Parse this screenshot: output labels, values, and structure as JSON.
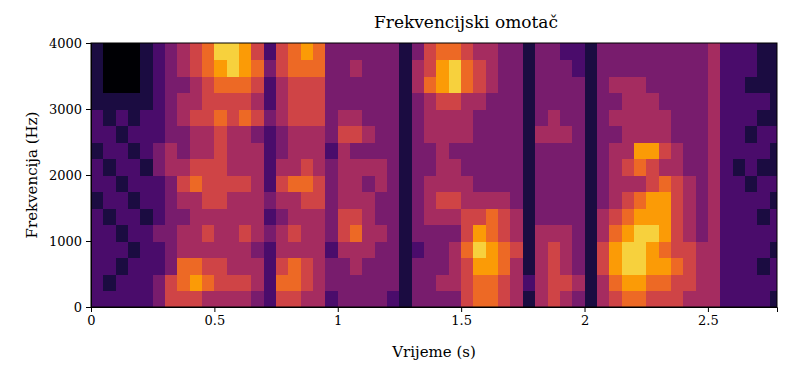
{
  "chart_data": {
    "type": "heatmap",
    "title": "Frekvencijski omotač",
    "x_label": "Vrijeme (s)",
    "y_label": "Frekvencija (Hz)",
    "color": "inferno",
    "xlim": [
      0,
      2.78
    ],
    "ylim": [
      0,
      4000
    ],
    "xticks": [
      0,
      0.5,
      1,
      1.5,
      2,
      2.5
    ],
    "yticks": [
      0,
      1000,
      2000,
      3000,
      4000
    ],
    "zlim": [
      0,
      9
    ],
    "x": [
      0,
      0.05,
      0.1,
      0.15,
      0.2,
      0.25,
      0.3,
      0.35,
      0.4,
      0.45,
      0.5,
      0.55,
      0.6,
      0.65,
      0.7,
      0.75,
      0.8,
      0.85,
      0.9,
      0.95,
      1,
      1.05,
      1.1,
      1.15,
      1.2,
      1.25,
      1.3,
      1.35,
      1.4,
      1.45,
      1.5,
      1.55,
      1.6,
      1.65,
      1.7,
      1.75,
      1.8,
      1.85,
      1.9,
      1.95,
      2,
      2.05,
      2.1,
      2.15,
      2.2,
      2.25,
      2.3,
      2.35,
      2.4,
      2.45,
      2.5,
      2.55,
      2.6,
      2.65,
      2.7,
      2.75
    ],
    "y": [
      0,
      250,
      500,
      750,
      1000,
      1250,
      1500,
      1750,
      2000,
      2250,
      2500,
      2750,
      3000,
      3250,
      3500,
      3750
    ],
    "z": [
      [
        2,
        2,
        2,
        2,
        2,
        2,
        1,
        2,
        2,
        1,
        2,
        2,
        1,
        1,
        1,
        1
      ],
      [
        2,
        1,
        2,
        2,
        2,
        1,
        2,
        2,
        1,
        2,
        2,
        1,
        1,
        0,
        0,
        0
      ],
      [
        2,
        2,
        1,
        2,
        1,
        2,
        2,
        1,
        2,
        2,
        1,
        2,
        1,
        0,
        0,
        0
      ],
      [
        2,
        2,
        2,
        1,
        2,
        2,
        1,
        2,
        2,
        1,
        2,
        1,
        1,
        0,
        0,
        0
      ],
      [
        2,
        2,
        2,
        2,
        2,
        1,
        2,
        2,
        1,
        2,
        2,
        2,
        1,
        1,
        1,
        1
      ],
      [
        3,
        3,
        2,
        2,
        3,
        2,
        2,
        2,
        3,
        3,
        2,
        2,
        2,
        2,
        2,
        2
      ],
      [
        5,
        5,
        3,
        3,
        3,
        3,
        3,
        3,
        4,
        4,
        3,
        3,
        3,
        3,
        3,
        3
      ],
      [
        5,
        6,
        6,
        4,
        4,
        3,
        4,
        5,
        4,
        3,
        3,
        4,
        4,
        3,
        4,
        4
      ],
      [
        5,
        7,
        6,
        4,
        4,
        4,
        4,
        6,
        5,
        4,
        4,
        5,
        4,
        4,
        5,
        5
      ],
      [
        4,
        6,
        5,
        4,
        5,
        4,
        5,
        5,
        5,
        4,
        4,
        5,
        5,
        5,
        6,
        6
      ],
      [
        4,
        5,
        5,
        4,
        4,
        4,
        5,
        5,
        5,
        5,
        5,
        6,
        5,
        6,
        7,
        8
      ],
      [
        4,
        5,
        4,
        4,
        4,
        4,
        4,
        5,
        4,
        4,
        4,
        5,
        5,
        6,
        8,
        8
      ],
      [
        4,
        5,
        4,
        4,
        5,
        4,
        4,
        5,
        4,
        4,
        4,
        6,
        5,
        6,
        7,
        7
      ],
      [
        3,
        4,
        4,
        3,
        4,
        4,
        4,
        4,
        4,
        4,
        3,
        5,
        4,
        5,
        6,
        5
      ],
      [
        2,
        2,
        2,
        2,
        3,
        2,
        3,
        2,
        2,
        2,
        2,
        3,
        2,
        2,
        3,
        2
      ],
      [
        5,
        6,
        5,
        4,
        4,
        3,
        4,
        5,
        4,
        3,
        3,
        4,
        4,
        4,
        5,
        5
      ],
      [
        5,
        6,
        6,
        4,
        5,
        4,
        4,
        6,
        4,
        4,
        4,
        5,
        5,
        5,
        6,
        6
      ],
      [
        4,
        5,
        5,
        4,
        4,
        4,
        5,
        6,
        5,
        4,
        4,
        5,
        5,
        5,
        6,
        7
      ],
      [
        4,
        4,
        4,
        4,
        4,
        4,
        5,
        5,
        4,
        4,
        4,
        5,
        5,
        5,
        6,
        6
      ],
      [
        2,
        3,
        3,
        2,
        3,
        3,
        3,
        3,
        3,
        2,
        3,
        3,
        3,
        3,
        3,
        3
      ],
      [
        3,
        3,
        3,
        4,
        5,
        5,
        4,
        4,
        4,
        4,
        5,
        4,
        3,
        3,
        3,
        3
      ],
      [
        3,
        3,
        4,
        4,
        6,
        5,
        4,
        4,
        4,
        3,
        5,
        4,
        3,
        3,
        4,
        3
      ],
      [
        3,
        3,
        3,
        4,
        4,
        4,
        4,
        3,
        4,
        3,
        4,
        3,
        3,
        3,
        3,
        3
      ],
      [
        3,
        3,
        3,
        3,
        4,
        3,
        3,
        4,
        4,
        3,
        3,
        3,
        3,
        3,
        3,
        3
      ],
      [
        2,
        3,
        3,
        3,
        3,
        3,
        3,
        3,
        3,
        3,
        3,
        3,
        3,
        3,
        3,
        3
      ],
      [
        1,
        1,
        1,
        1,
        1,
        1,
        1,
        1,
        1,
        1,
        1,
        1,
        1,
        1,
        1,
        1
      ],
      [
        3,
        3,
        3,
        2,
        3,
        3,
        3,
        3,
        3,
        3,
        3,
        3,
        3,
        4,
        4,
        3
      ],
      [
        3,
        3,
        3,
        3,
        3,
        4,
        4,
        4,
        3,
        3,
        4,
        4,
        4,
        6,
        5,
        5
      ],
      [
        3,
        4,
        3,
        3,
        3,
        4,
        5,
        4,
        4,
        4,
        4,
        4,
        5,
        7,
        7,
        6
      ],
      [
        3,
        4,
        4,
        4,
        3,
        4,
        5,
        4,
        4,
        3,
        4,
        4,
        5,
        8,
        8,
        6
      ],
      [
        5,
        5,
        5,
        6,
        5,
        5,
        4,
        4,
        3,
        3,
        4,
        4,
        4,
        6,
        6,
        5
      ],
      [
        6,
        6,
        7,
        8,
        7,
        5,
        4,
        3,
        3,
        3,
        3,
        3,
        4,
        5,
        5,
        4
      ],
      [
        6,
        6,
        7,
        7,
        6,
        6,
        4,
        3,
        3,
        3,
        3,
        3,
        3,
        4,
        4,
        4
      ],
      [
        5,
        5,
        6,
        6,
        5,
        5,
        4,
        3,
        3,
        3,
        3,
        3,
        3,
        3,
        3,
        3
      ],
      [
        4,
        4,
        4,
        5,
        4,
        4,
        3,
        3,
        3,
        3,
        3,
        3,
        3,
        3,
        3,
        3
      ],
      [
        1,
        2,
        1,
        1,
        1,
        1,
        1,
        1,
        1,
        1,
        1,
        1,
        1,
        1,
        1,
        1
      ],
      [
        4,
        4,
        4,
        4,
        4,
        3,
        3,
        3,
        3,
        3,
        4,
        3,
        3,
        3,
        3,
        3
      ],
      [
        5,
        5,
        5,
        5,
        4,
        3,
        3,
        3,
        3,
        3,
        4,
        4,
        3,
        3,
        3,
        3
      ],
      [
        4,
        5,
        4,
        4,
        4,
        3,
        3,
        3,
        3,
        3,
        4,
        3,
        3,
        3,
        3,
        2
      ],
      [
        3,
        4,
        3,
        3,
        3,
        3,
        3,
        3,
        3,
        3,
        3,
        3,
        3,
        3,
        2,
        2
      ],
      [
        1,
        1,
        1,
        1,
        1,
        1,
        1,
        1,
        1,
        1,
        1,
        1,
        1,
        1,
        1,
        1
      ],
      [
        4,
        4,
        5,
        5,
        4,
        4,
        3,
        3,
        3,
        3,
        3,
        3,
        3,
        3,
        3,
        3
      ],
      [
        5,
        6,
        7,
        7,
        6,
        5,
        4,
        4,
        4,
        4,
        3,
        4,
        3,
        4,
        3,
        3
      ],
      [
        6,
        7,
        8,
        8,
        7,
        6,
        5,
        4,
        5,
        4,
        4,
        4,
        4,
        4,
        3,
        3
      ],
      [
        6,
        7,
        8,
        8,
        8,
        7,
        6,
        4,
        6,
        7,
        4,
        4,
        4,
        4,
        3,
        3
      ],
      [
        5,
        6,
        7,
        7,
        8,
        7,
        7,
        5,
        5,
        7,
        4,
        4,
        4,
        3,
        3,
        3
      ],
      [
        5,
        6,
        7,
        6,
        7,
        7,
        7,
        6,
        4,
        5,
        4,
        4,
        3,
        3,
        3,
        3
      ],
      [
        5,
        5,
        6,
        5,
        5,
        5,
        5,
        5,
        4,
        4,
        3,
        3,
        3,
        3,
        3,
        3
      ],
      [
        4,
        5,
        5,
        5,
        4,
        4,
        4,
        4,
        3,
        3,
        3,
        3,
        3,
        3,
        3,
        3
      ],
      [
        4,
        4,
        4,
        4,
        3,
        3,
        3,
        3,
        3,
        3,
        3,
        3,
        3,
        3,
        3,
        3
      ],
      [
        4,
        4,
        4,
        4,
        4,
        4,
        4,
        4,
        4,
        4,
        4,
        4,
        4,
        4,
        4,
        4
      ],
      [
        2,
        2,
        2,
        2,
        2,
        2,
        2,
        2,
        2,
        2,
        2,
        2,
        2,
        2,
        2,
        2
      ],
      [
        2,
        2,
        2,
        2,
        2,
        2,
        2,
        2,
        1,
        2,
        2,
        2,
        2,
        2,
        2,
        2
      ],
      [
        2,
        2,
        2,
        2,
        2,
        2,
        2,
        1,
        2,
        2,
        1,
        2,
        2,
        1,
        2,
        2
      ],
      [
        2,
        2,
        1,
        2,
        2,
        1,
        2,
        2,
        1,
        2,
        2,
        1,
        2,
        1,
        1,
        1
      ],
      [
        1,
        2,
        2,
        1,
        2,
        2,
        1,
        2,
        1,
        1,
        2,
        1,
        1,
        1,
        1,
        1
      ]
    ]
  }
}
